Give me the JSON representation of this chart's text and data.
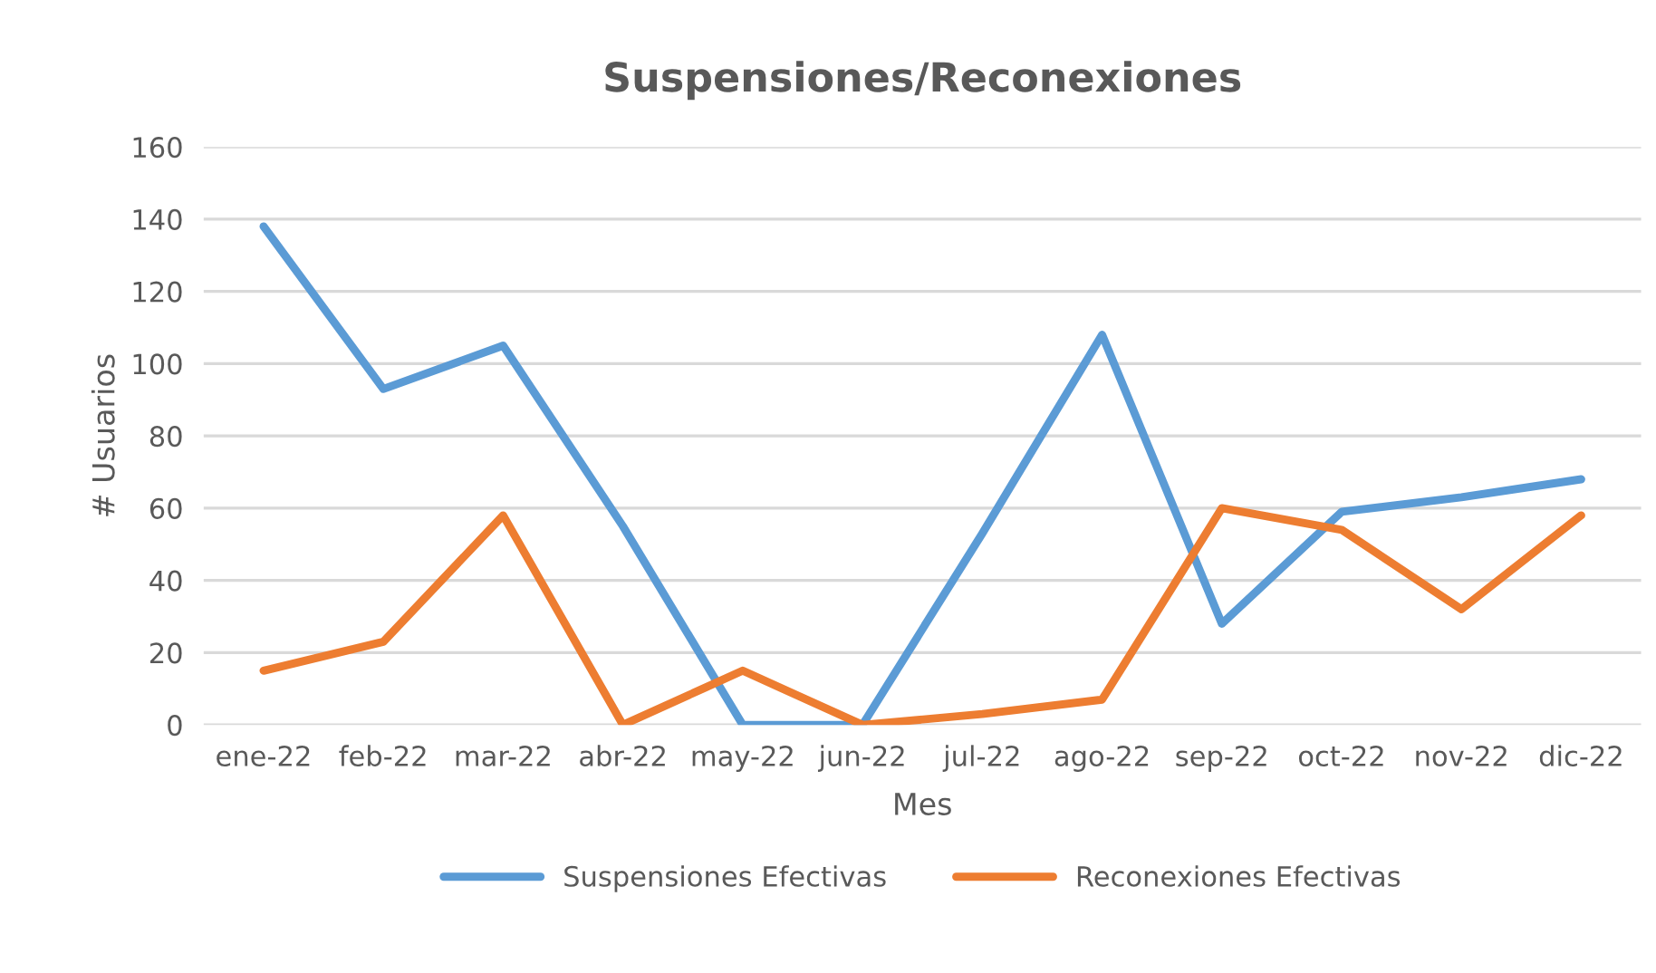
{
  "chart_data": {
    "type": "line",
    "title": "Suspensiones/Reconexiones",
    "xlabel": "Mes",
    "ylabel": "# Usuarios",
    "categories": [
      "ene-22",
      "feb-22",
      "mar-22",
      "abr-22",
      "may-22",
      "jun-22",
      "jul-22",
      "ago-22",
      "sep-22",
      "oct-22",
      "nov-22",
      "dic-22"
    ],
    "series": [
      {
        "name": "Suspensiones Efectivas",
        "color": "#5b9bd5",
        "values": [
          138,
          93,
          105,
          55,
          0,
          0,
          53,
          108,
          28,
          59,
          63,
          68
        ]
      },
      {
        "name": "Reconexiones Efectivas",
        "color": "#ed7d31",
        "values": [
          15,
          23,
          58,
          0,
          15,
          0,
          3,
          7,
          60,
          54,
          32,
          58
        ]
      }
    ],
    "ylim": [
      0,
      160
    ],
    "yticks": [
      0,
      20,
      40,
      60,
      80,
      100,
      120,
      140,
      160
    ],
    "grid": "y",
    "legend": "bottom",
    "marker": "none",
    "line_style": "solid"
  }
}
